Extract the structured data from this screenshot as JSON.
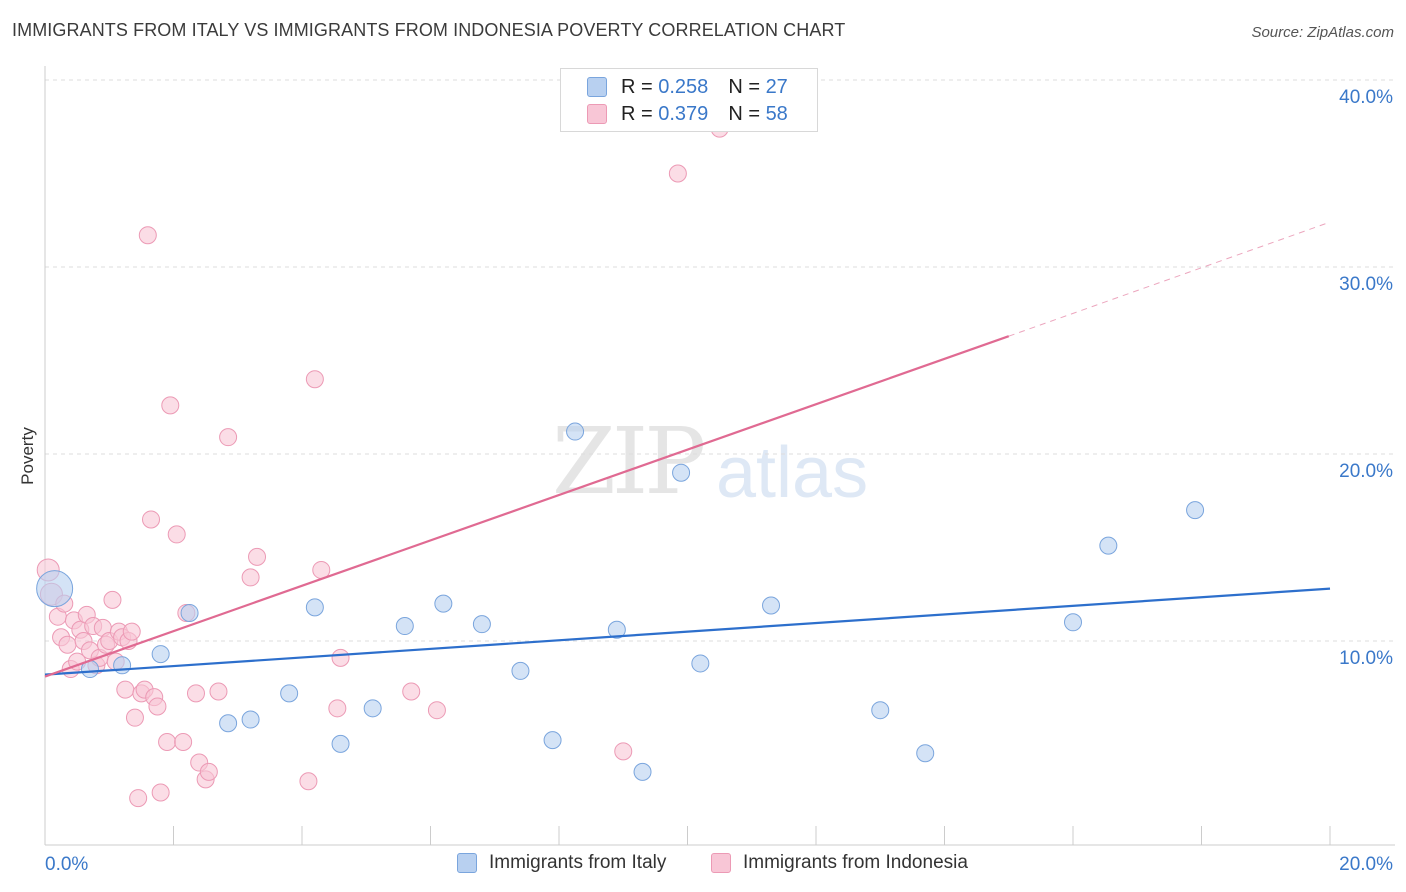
{
  "header": {
    "title": "IMMIGRANTS FROM ITALY VS IMMIGRANTS FROM INDONESIA POVERTY CORRELATION CHART",
    "source": "Source: ZipAtlas.com"
  },
  "legend": {
    "italy": {
      "r_label": "R = ",
      "r_value": "0.258",
      "n_label": "N = ",
      "n_value": "27"
    },
    "indonesia": {
      "r_label": "R = ",
      "r_value": "0.379",
      "n_label": "N = ",
      "n_value": "58"
    }
  },
  "bottom_legend": {
    "italy": "Immigrants from Italy",
    "indonesia": "Immigrants from Indonesia"
  },
  "watermark": {
    "zip": "ZIP",
    "atlas": "atlas"
  },
  "colors": {
    "italy_fill": "#b8d0f0",
    "italy_stroke": "#7aa5dd",
    "italy_line": "#2d6fcc",
    "indonesia_fill": "#f8c6d6",
    "indonesia_stroke": "#ec9ab5",
    "indonesia_line": "#e06a92",
    "axis_text": "#3a78c9",
    "grid": "#dddddd"
  },
  "chart_data": {
    "type": "scatter",
    "title": "IMMIGRANTS FROM ITALY VS IMMIGRANTS FROM INDONESIA POVERTY CORRELATION CHART",
    "xlabel": "",
    "ylabel": "Poverty",
    "xlim": [
      0,
      20
    ],
    "ylim": [
      0,
      40
    ],
    "x_tick_labels": [
      "0.0%",
      "20.0%"
    ],
    "y_ticks": [
      10,
      20,
      30,
      40
    ],
    "y_tick_labels": [
      "10.0%",
      "20.0%",
      "30.0%",
      "40.0%"
    ],
    "series": [
      {
        "name": "Immigrants from Italy",
        "r": 0.258,
        "n": 27,
        "trend": {
          "x0": 0,
          "y0": 8.2,
          "x1": 20,
          "y1": 12.8
        },
        "points": [
          {
            "x": 0.15,
            "y": 12.8,
            "big": true
          },
          {
            "x": 0.7,
            "y": 8.5
          },
          {
            "x": 1.2,
            "y": 8.7
          },
          {
            "x": 1.8,
            "y": 9.3
          },
          {
            "x": 2.25,
            "y": 11.5
          },
          {
            "x": 2.85,
            "y": 5.6
          },
          {
            "x": 3.2,
            "y": 5.8
          },
          {
            "x": 3.8,
            "y": 7.2
          },
          {
            "x": 4.2,
            "y": 11.8
          },
          {
            "x": 4.6,
            "y": 4.5
          },
          {
            "x": 5.1,
            "y": 6.4
          },
          {
            "x": 5.6,
            "y": 10.8
          },
          {
            "x": 6.2,
            "y": 12.0
          },
          {
            "x": 6.8,
            "y": 10.9
          },
          {
            "x": 7.4,
            "y": 8.4
          },
          {
            "x": 7.9,
            "y": 4.7
          },
          {
            "x": 8.25,
            "y": 21.2
          },
          {
            "x": 8.9,
            "y": 10.6
          },
          {
            "x": 9.3,
            "y": 3.0
          },
          {
            "x": 9.9,
            "y": 19.0
          },
          {
            "x": 10.2,
            "y": 8.8
          },
          {
            "x": 11.3,
            "y": 11.9
          },
          {
            "x": 13.0,
            "y": 6.3
          },
          {
            "x": 13.7,
            "y": 4.0
          },
          {
            "x": 16.0,
            "y": 11.0
          },
          {
            "x": 16.55,
            "y": 15.1
          },
          {
            "x": 17.9,
            "y": 17.0
          }
        ]
      },
      {
        "name": "Immigrants from Indonesia",
        "r": 0.379,
        "n": 58,
        "trend": {
          "x0": 0,
          "y0": 8.1,
          "x1": 15.0,
          "y1": 26.3,
          "dash_to_x": 20,
          "dash_to_y": 32.4
        },
        "points": [
          {
            "x": 0.05,
            "y": 13.8,
            "big": true
          },
          {
            "x": 0.1,
            "y": 12.5,
            "big": true
          },
          {
            "x": 0.2,
            "y": 11.3
          },
          {
            "x": 0.25,
            "y": 10.2
          },
          {
            "x": 0.3,
            "y": 12.0
          },
          {
            "x": 0.35,
            "y": 9.8
          },
          {
            "x": 0.4,
            "y": 8.5
          },
          {
            "x": 0.45,
            "y": 11.1
          },
          {
            "x": 0.5,
            "y": 8.9
          },
          {
            "x": 0.55,
            "y": 10.6
          },
          {
            "x": 0.6,
            "y": 10.0
          },
          {
            "x": 0.65,
            "y": 11.4
          },
          {
            "x": 0.7,
            "y": 9.5
          },
          {
            "x": 0.75,
            "y": 10.8
          },
          {
            "x": 0.8,
            "y": 8.7
          },
          {
            "x": 0.85,
            "y": 9.1
          },
          {
            "x": 0.9,
            "y": 10.7
          },
          {
            "x": 0.95,
            "y": 9.8
          },
          {
            "x": 1.0,
            "y": 10.0
          },
          {
            "x": 1.05,
            "y": 12.2
          },
          {
            "x": 1.1,
            "y": 8.9
          },
          {
            "x": 1.15,
            "y": 10.5
          },
          {
            "x": 1.2,
            "y": 10.2
          },
          {
            "x": 1.25,
            "y": 7.4
          },
          {
            "x": 1.3,
            "y": 10.0
          },
          {
            "x": 1.35,
            "y": 10.5
          },
          {
            "x": 1.4,
            "y": 5.9
          },
          {
            "x": 1.45,
            "y": 1.6
          },
          {
            "x": 1.5,
            "y": 7.2
          },
          {
            "x": 1.55,
            "y": 7.4
          },
          {
            "x": 1.6,
            "y": 31.7
          },
          {
            "x": 1.65,
            "y": 16.5
          },
          {
            "x": 1.7,
            "y": 7.0
          },
          {
            "x": 1.75,
            "y": 6.5
          },
          {
            "x": 1.8,
            "y": 1.9
          },
          {
            "x": 1.9,
            "y": 4.6
          },
          {
            "x": 1.95,
            "y": 22.6
          },
          {
            "x": 2.05,
            "y": 15.7
          },
          {
            "x": 2.15,
            "y": 4.6
          },
          {
            "x": 2.2,
            "y": 11.5
          },
          {
            "x": 2.35,
            "y": 7.2
          },
          {
            "x": 2.4,
            "y": 3.5
          },
          {
            "x": 2.5,
            "y": 2.6
          },
          {
            "x": 2.55,
            "y": 3.0
          },
          {
            "x": 2.7,
            "y": 7.3
          },
          {
            "x": 2.85,
            "y": 20.9
          },
          {
            "x": 3.2,
            "y": 13.4
          },
          {
            "x": 3.3,
            "y": 14.5
          },
          {
            "x": 4.1,
            "y": 2.5
          },
          {
            "x": 4.2,
            "y": 24.0
          },
          {
            "x": 4.3,
            "y": 13.8
          },
          {
            "x": 4.6,
            "y": 9.1
          },
          {
            "x": 4.55,
            "y": 6.4
          },
          {
            "x": 5.7,
            "y": 7.3
          },
          {
            "x": 6.1,
            "y": 6.3
          },
          {
            "x": 9.0,
            "y": 4.1
          },
          {
            "x": 9.85,
            "y": 35.0
          },
          {
            "x": 10.5,
            "y": 37.4
          }
        ]
      }
    ]
  }
}
